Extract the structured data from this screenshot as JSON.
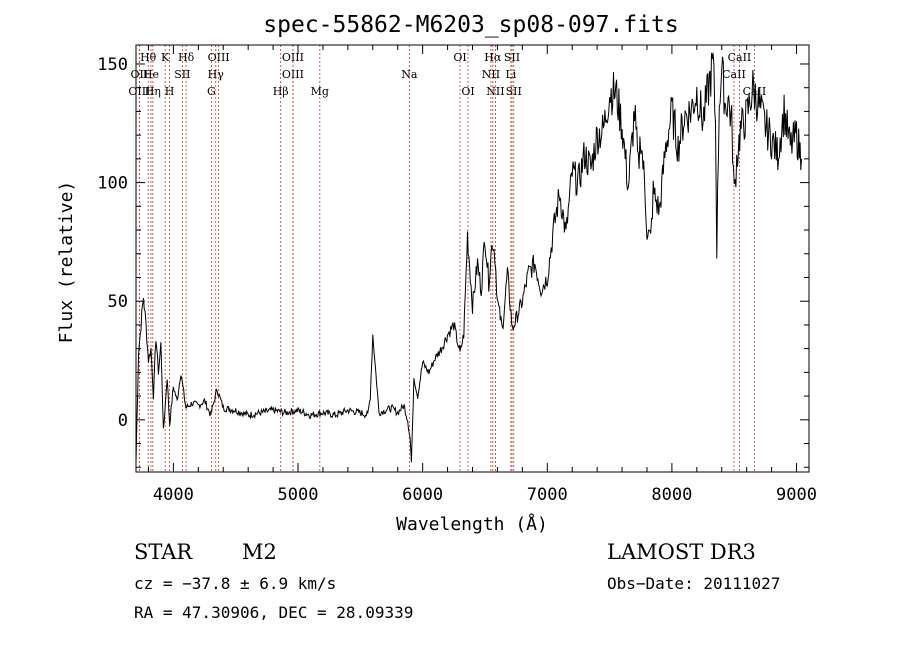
{
  "chart_data": {
    "type": "line",
    "title": "spec-55862-M6203_sp08-097.fits",
    "xlabel": "Wavelength (Å)",
    "ylabel": "Flux (relative)",
    "xlim": [
      3700,
      9100
    ],
    "ylim": [
      -22,
      158
    ],
    "xticks": [
      4000,
      5000,
      6000,
      7000,
      8000,
      9000
    ],
    "yticks": [
      0,
      50,
      100,
      150
    ],
    "grid": false,
    "series": [
      {
        "name": "flux",
        "x": [
          3700,
          3720,
          3740,
          3760,
          3780,
          3800,
          3820,
          3840,
          3860,
          3880,
          3900,
          3920,
          3950,
          3970,
          4000,
          4030,
          4060,
          4100,
          4150,
          4200,
          4250,
          4300,
          4350,
          4400,
          4500,
          4600,
          4700,
          4800,
          4900,
          5000,
          5100,
          5200,
          5300,
          5400,
          5500,
          5560,
          5580,
          5600,
          5650,
          5700,
          5750,
          5800,
          5850,
          5880,
          5900,
          5910,
          5930,
          5960,
          6000,
          6050,
          6100,
          6150,
          6200,
          6250,
          6300,
          6330,
          6360,
          6400,
          6440,
          6470,
          6500,
          6530,
          6560,
          6580,
          6600,
          6640,
          6680,
          6720,
          6760,
          6800,
          6850,
          6900,
          6950,
          7000,
          7050,
          7100,
          7150,
          7200,
          7250,
          7300,
          7350,
          7400,
          7450,
          7500,
          7550,
          7600,
          7650,
          7700,
          7730,
          7750,
          7780,
          7800,
          7830,
          7850,
          7900,
          7950,
          8000,
          8050,
          8100,
          8150,
          8200,
          8250,
          8300,
          8330,
          8350,
          8360,
          8380,
          8400,
          8430,
          8450,
          8480,
          8500,
          8520,
          8550,
          8600,
          8650,
          8700,
          8750,
          8800,
          8850,
          8900,
          8950,
          9000,
          9040
        ],
        "values": [
          -18,
          28,
          40,
          52,
          40,
          25,
          30,
          10,
          35,
          20,
          32,
          -5,
          18,
          -2,
          14,
          8,
          20,
          5,
          7,
          6,
          8,
          2,
          13,
          5,
          4,
          2,
          3,
          4,
          3,
          4,
          2,
          3,
          2,
          4,
          3,
          2,
          10,
          36,
          3,
          4,
          5,
          3,
          6,
          0,
          -8,
          -18,
          18,
          10,
          24,
          20,
          26,
          30,
          36,
          40,
          28,
          36,
          78,
          48,
          66,
          55,
          78,
          58,
          76,
          70,
          50,
          38,
          62,
          38,
          44,
          50,
          62,
          66,
          55,
          60,
          80,
          96,
          78,
          104,
          100,
          112,
          106,
          120,
          122,
          138,
          138,
          124,
          98,
          130,
          106,
          120,
          100,
          80,
          76,
          96,
          88,
          115,
          130,
          115,
          128,
          130,
          138,
          126,
          142,
          150,
          125,
          72,
          135,
          148,
          132,
          136,
          125,
          95,
          110,
          122,
          128,
          140,
          132,
          124,
          118,
          112,
          130,
          115,
          120,
          110
        ]
      }
    ],
    "lines": [
      {
        "name": "Hθ",
        "w": 3798,
        "row": 1
      },
      {
        "name": "OII",
        "w": 3727,
        "row": 2
      },
      {
        "name": "OIII",
        "w": 3727,
        "row": 3
      },
      {
        "name": "He",
        "w": 3820,
        "row": 2
      },
      {
        "name": "Hη",
        "w": 3835,
        "row": 3
      },
      {
        "name": "K",
        "w": 3934,
        "row": 1
      },
      {
        "name": "H",
        "w": 3969,
        "row": 3
      },
      {
        "name": "SII",
        "w": 4072,
        "row": 2
      },
      {
        "name": "Hδ",
        "w": 4102,
        "row": 1
      },
      {
        "name": "OIII",
        "w": 4363,
        "row": 1
      },
      {
        "name": "Hγ",
        "w": 4340,
        "row": 2
      },
      {
        "name": "G",
        "w": 4305,
        "row": 3
      },
      {
        "name": "OIII",
        "w": 4959,
        "row": 1
      },
      {
        "name": "OIII",
        "w": 4959,
        "row": 2
      },
      {
        "name": "Hβ",
        "w": 4861,
        "row": 3
      },
      {
        "name": "Mg",
        "w": 5175,
        "row": 3
      },
      {
        "name": "Na",
        "w": 5893,
        "row": 2
      },
      {
        "name": "OI",
        "w": 6300,
        "row": 1
      },
      {
        "name": "OI",
        "w": 6364,
        "row": 3
      },
      {
        "name": "Hα",
        "w": 6563,
        "row": 1
      },
      {
        "name": "NII",
        "w": 6548,
        "row": 2
      },
      {
        "name": "NII",
        "w": 6584,
        "row": 3
      },
      {
        "name": "SII",
        "w": 6717,
        "row": 1
      },
      {
        "name": "Li",
        "w": 6708,
        "row": 2
      },
      {
        "name": "SII",
        "w": 6731,
        "row": 3
      },
      {
        "name": "CaII",
        "w": 8542,
        "row": 1
      },
      {
        "name": "CaII",
        "w": 8498,
        "row": 2
      },
      {
        "name": "CaII",
        "w": 8662,
        "row": 3
      }
    ]
  },
  "info": {
    "object_class": "STAR",
    "subclass": "M2",
    "survey": "LAMOST DR3",
    "cz": "cz = −37.8 ± 6.9 km/s",
    "obs_date": "Obs−Date: 20111027",
    "coords": "RA =  47.30906, DEC =  28.09339"
  },
  "colors": {
    "line_marker": "#c0392b",
    "axis": "#000000"
  }
}
